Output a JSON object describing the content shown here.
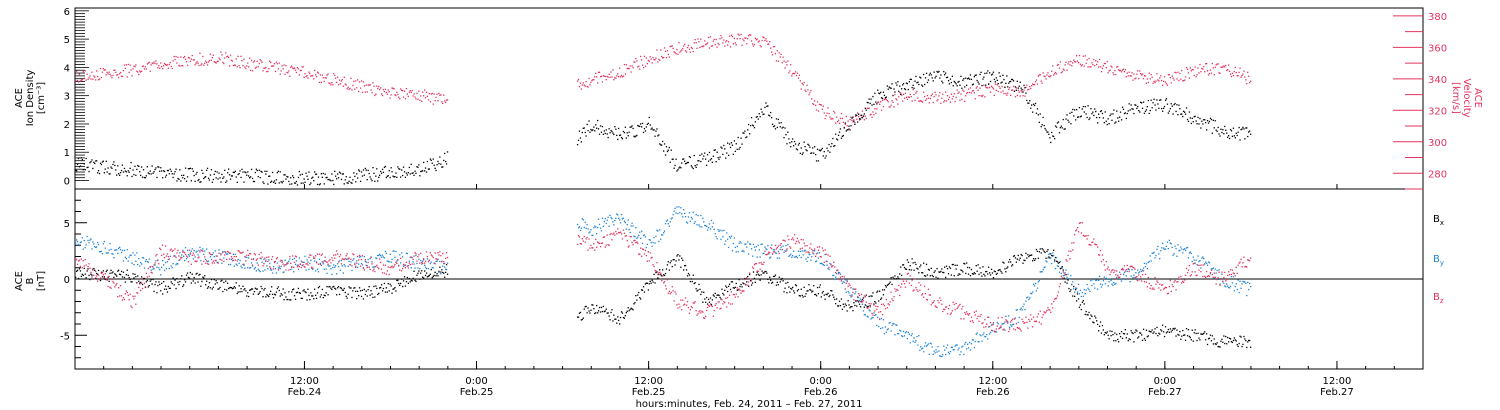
{
  "chart_data": {
    "type": "scatter",
    "xlabel": "hours:minutes, Feb. 24, 2011 – Feb. 27, 2011",
    "xlim": [
      "2011-02-23T20:00",
      "2011-02-27T18:00"
    ],
    "x_ticks": [
      {
        "t": "2011-02-24T12:00",
        "time": "12:00",
        "date": "Feb.24"
      },
      {
        "t": "2011-02-25T00:00",
        "time": "0:00",
        "date": "Feb.25"
      },
      {
        "t": "2011-02-25T12:00",
        "time": "12:00",
        "date": "Feb.25"
      },
      {
        "t": "2011-02-26T00:00",
        "time": "0:00",
        "date": "Feb.26"
      },
      {
        "t": "2011-02-26T12:00",
        "time": "12:00",
        "date": "Feb.26"
      },
      {
        "t": "2011-02-27T00:00",
        "time": "0:00",
        "date": "Feb.27"
      },
      {
        "t": "2011-02-27T12:00",
        "time": "12:00",
        "date": "Feb.27"
      }
    ],
    "gap": [
      "2011-02-24T22:00",
      "2011-02-25T07:00"
    ],
    "panels": [
      {
        "name": "density_velocity",
        "ylabel_lines": [
          "ACE",
          "Ion Density"
        ],
        "yunit": "[cm⁻³]",
        "ylim": [
          -0.3,
          6.1
        ],
        "yticks": [
          0,
          1,
          2,
          3,
          4,
          5,
          6
        ],
        "ylabel_right_lines": [
          "ACE",
          "Velocity"
        ],
        "yunit_right": "[km/s]",
        "ylim_right": [
          270,
          385
        ],
        "yticks_right": [
          280,
          300,
          320,
          340,
          360,
          380
        ],
        "series": [
          {
            "name": "Ion Density",
            "axis": "left",
            "color": "#000000",
            "x": [
              "2011-02-23T20:00",
              "2011-02-24T00:00",
              "2011-02-24T02:00",
              "2011-02-24T04:00",
              "2011-02-24T06:00",
              "2011-02-24T08:00",
              "2011-02-24T10:00",
              "2011-02-24T12:00",
              "2011-02-24T14:00",
              "2011-02-24T16:00",
              "2011-02-24T18:00",
              "2011-02-24T20:00",
              "2011-02-24T22:00",
              "2011-02-25T07:00",
              "2011-02-25T08:00",
              "2011-02-25T10:00",
              "2011-02-25T12:00",
              "2011-02-25T14:00",
              "2011-02-25T16:00",
              "2011-02-25T18:00",
              "2011-02-25T20:00",
              "2011-02-25T22:00",
              "2011-02-26T00:00",
              "2011-02-26T02:00",
              "2011-02-26T04:00",
              "2011-02-26T06:00",
              "2011-02-26T08:00",
              "2011-02-26T10:00",
              "2011-02-26T12:00",
              "2011-02-26T14:00",
              "2011-02-26T16:00",
              "2011-02-26T18:00",
              "2011-02-26T20:00",
              "2011-02-26T22:00",
              "2011-02-27T00:00",
              "2011-02-27T02:00",
              "2011-02-27T04:00",
              "2011-02-27T06:00"
            ],
            "values": [
              0.6,
              0.4,
              0.3,
              0.2,
              0.2,
              0.2,
              0.1,
              0.1,
              0.1,
              0.2,
              0.3,
              0.4,
              0.8,
              1.5,
              2.0,
              1.6,
              2.0,
              0.5,
              0.8,
              1.2,
              2.6,
              1.3,
              0.9,
              2.0,
              3.0,
              3.4,
              3.8,
              3.5,
              3.7,
              3.3,
              1.6,
              2.5,
              2.2,
              2.6,
              2.7,
              2.2,
              1.8,
              1.6
            ]
          },
          {
            "name": "Velocity",
            "axis": "right",
            "color": "#e2345f",
            "x": [
              "2011-02-23T20:00",
              "2011-02-24T00:00",
              "2011-02-24T02:00",
              "2011-02-24T04:00",
              "2011-02-24T06:00",
              "2011-02-24T08:00",
              "2011-02-24T10:00",
              "2011-02-24T12:00",
              "2011-02-24T14:00",
              "2011-02-24T16:00",
              "2011-02-24T18:00",
              "2011-02-24T20:00",
              "2011-02-24T22:00",
              "2011-02-25T07:00",
              "2011-02-25T08:00",
              "2011-02-25T10:00",
              "2011-02-25T12:00",
              "2011-02-25T14:00",
              "2011-02-25T16:00",
              "2011-02-25T18:00",
              "2011-02-25T20:00",
              "2011-02-25T22:00",
              "2011-02-26T00:00",
              "2011-02-26T02:00",
              "2011-02-26T04:00",
              "2011-02-26T06:00",
              "2011-02-26T08:00",
              "2011-02-26T10:00",
              "2011-02-26T12:00",
              "2011-02-26T14:00",
              "2011-02-26T16:00",
              "2011-02-26T18:00",
              "2011-02-26T20:00",
              "2011-02-26T22:00",
              "2011-02-27T00:00",
              "2011-02-27T02:00",
              "2011-02-27T04:00",
              "2011-02-27T06:00"
            ],
            "values": [
              342,
              346,
              350,
              352,
              354,
              350,
              347,
              344,
              340,
              335,
              332,
              330,
              326,
              336,
              340,
              345,
              353,
              360,
              363,
              365,
              364,
              345,
              320,
              312,
              322,
              330,
              328,
              330,
              334,
              332,
              345,
              352,
              348,
              342,
              340,
              345,
              348,
              340
            ]
          }
        ]
      },
      {
        "name": "magnetic_field",
        "ylabel_lines": [
          "ACE",
          "B"
        ],
        "yunit": "[nT]",
        "ylim": [
          -8,
          8
        ],
        "yticks": [
          -5,
          0,
          5
        ],
        "zero_line": true,
        "legend_position": "right",
        "series": [
          {
            "name": "Bx",
            "legend_main": "B",
            "legend_sub": "x",
            "color": "#000000",
            "x": [
              "2011-02-23T20:00",
              "2011-02-24T00:00",
              "2011-02-24T02:00",
              "2011-02-24T04:00",
              "2011-02-24T06:00",
              "2011-02-24T08:00",
              "2011-02-24T10:00",
              "2011-02-24T12:00",
              "2011-02-24T14:00",
              "2011-02-24T16:00",
              "2011-02-24T18:00",
              "2011-02-24T20:00",
              "2011-02-24T22:00",
              "2011-02-25T07:00",
              "2011-02-25T08:00",
              "2011-02-25T10:00",
              "2011-02-25T12:00",
              "2011-02-25T14:00",
              "2011-02-25T16:00",
              "2011-02-25T18:00",
              "2011-02-25T20:00",
              "2011-02-25T22:00",
              "2011-02-26T00:00",
              "2011-02-26T02:00",
              "2011-02-26T04:00",
              "2011-02-26T06:00",
              "2011-02-26T08:00",
              "2011-02-26T10:00",
              "2011-02-26T12:00",
              "2011-02-26T14:00",
              "2011-02-26T16:00",
              "2011-02-26T18:00",
              "2011-02-26T20:00",
              "2011-02-26T22:00",
              "2011-02-27T00:00",
              "2011-02-27T02:00",
              "2011-02-27T04:00",
              "2011-02-27T06:00"
            ],
            "values": [
              0.5,
              0.3,
              -0.8,
              0.2,
              -0.5,
              -1.0,
              -1.2,
              -1.3,
              -1.0,
              -1.2,
              -0.8,
              0.5,
              0.8,
              -3.5,
              -2.5,
              -3.5,
              -0.5,
              2.0,
              -2.0,
              -0.5,
              0.5,
              -1.0,
              -1.0,
              -2.5,
              -1.5,
              1.5,
              0.5,
              1.0,
              0.5,
              2.0,
              2.5,
              -2.0,
              -5.0,
              -5.0,
              -4.5,
              -5.0,
              -5.5,
              -5.5
            ]
          },
          {
            "name": "By",
            "legend_main": "B",
            "legend_sub": "y",
            "color": "#1f84d8",
            "x": [
              "2011-02-23T20:00",
              "2011-02-24T00:00",
              "2011-02-24T02:00",
              "2011-02-24T04:00",
              "2011-02-24T06:00",
              "2011-02-24T08:00",
              "2011-02-24T10:00",
              "2011-02-24T12:00",
              "2011-02-24T14:00",
              "2011-02-24T16:00",
              "2011-02-24T18:00",
              "2011-02-24T20:00",
              "2011-02-24T22:00",
              "2011-02-25T07:00",
              "2011-02-25T08:00",
              "2011-02-25T10:00",
              "2011-02-25T12:00",
              "2011-02-25T14:00",
              "2011-02-25T16:00",
              "2011-02-25T18:00",
              "2011-02-25T20:00",
              "2011-02-25T22:00",
              "2011-02-26T00:00",
              "2011-02-26T02:00",
              "2011-02-26T04:00",
              "2011-02-26T06:00",
              "2011-02-26T08:00",
              "2011-02-26T10:00",
              "2011-02-26T12:00",
              "2011-02-26T14:00",
              "2011-02-26T16:00",
              "2011-02-26T18:00",
              "2011-02-26T20:00",
              "2011-02-26T22:00",
              "2011-02-27T00:00",
              "2011-02-27T02:00",
              "2011-02-27T04:00",
              "2011-02-27T06:00"
            ],
            "values": [
              3.5,
              2.0,
              1.0,
              2.5,
              2.0,
              1.5,
              1.0,
              1.5,
              1.0,
              1.5,
              2.0,
              1.5,
              1.0,
              5.0,
              4.5,
              5.5,
              3.0,
              6.0,
              5.0,
              3.0,
              2.5,
              2.5,
              2.0,
              -1.0,
              -4.0,
              -5.0,
              -6.5,
              -6.0,
              -4.5,
              -3.0,
              2.0,
              -1.0,
              0.0,
              0.5,
              3.0,
              2.0,
              0.0,
              -1.0
            ]
          },
          {
            "name": "Bz",
            "legend_main": "B",
            "legend_sub": "z",
            "color": "#e2345f",
            "x": [
              "2011-02-23T20:00",
              "2011-02-24T00:00",
              "2011-02-24T02:00",
              "2011-02-24T04:00",
              "2011-02-24T06:00",
              "2011-02-24T08:00",
              "2011-02-24T10:00",
              "2011-02-24T12:00",
              "2011-02-24T14:00",
              "2011-02-24T16:00",
              "2011-02-24T18:00",
              "2011-02-24T20:00",
              "2011-02-24T22:00",
              "2011-02-25T07:00",
              "2011-02-25T08:00",
              "2011-02-25T10:00",
              "2011-02-25T12:00",
              "2011-02-25T14:00",
              "2011-02-25T16:00",
              "2011-02-25T18:00",
              "2011-02-25T20:00",
              "2011-02-25T22:00",
              "2011-02-26T00:00",
              "2011-02-26T02:00",
              "2011-02-26T04:00",
              "2011-02-26T06:00",
              "2011-02-26T08:00",
              "2011-02-26T10:00",
              "2011-02-26T12:00",
              "2011-02-26T14:00",
              "2011-02-26T16:00",
              "2011-02-26T18:00",
              "2011-02-26T20:00",
              "2011-02-26T22:00",
              "2011-02-27T00:00",
              "2011-02-27T02:00",
              "2011-02-27T04:00",
              "2011-02-27T06:00"
            ],
            "values": [
              2.0,
              -2.0,
              2.5,
              2.0,
              2.0,
              2.0,
              1.5,
              1.5,
              2.0,
              1.5,
              1.0,
              2.0,
              2.0,
              3.5,
              3.0,
              4.0,
              2.0,
              -2.0,
              -3.0,
              -1.5,
              2.0,
              3.5,
              2.5,
              -1.0,
              -3.0,
              0.0,
              -2.0,
              -3.0,
              -4.0,
              -4.0,
              -3.0,
              5.0,
              1.0,
              0.5,
              -1.0,
              1.0,
              0.0,
              2.0
            ]
          }
        ]
      }
    ]
  }
}
